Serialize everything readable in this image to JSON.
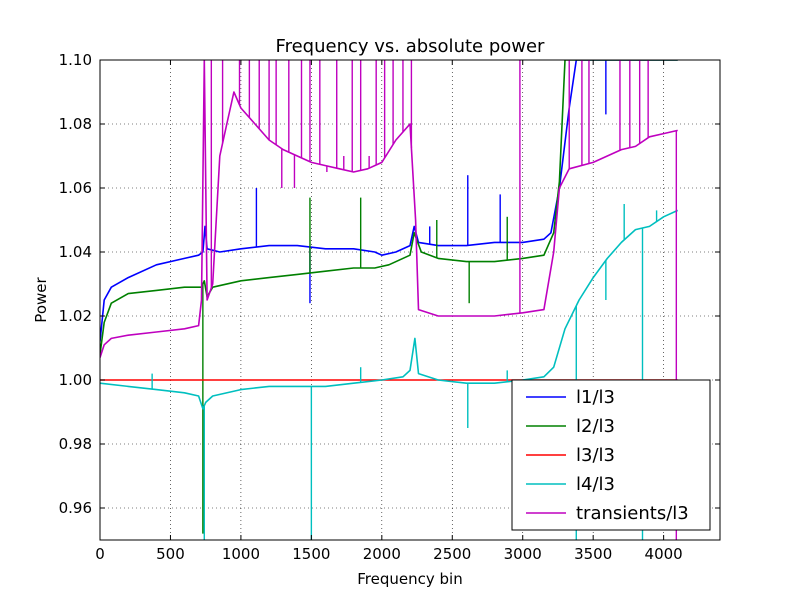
{
  "chart_data": {
    "type": "line",
    "title": "Frequency vs. absolute power",
    "xlabel": "Frequency bin",
    "ylabel": "Power",
    "xlim": [
      0,
      4400
    ],
    "ylim": [
      0.95,
      1.1
    ],
    "xticks": [
      0,
      500,
      1000,
      1500,
      2000,
      2500,
      3000,
      3500,
      4000
    ],
    "yticks": [
      0.96,
      0.98,
      1.0,
      1.02,
      1.04,
      1.06,
      1.08,
      1.1
    ],
    "ytick_labels": [
      "0.96",
      "0.98",
      "1.00",
      "1.02",
      "1.04",
      "1.06",
      "1.08",
      "1.10"
    ],
    "grid": true,
    "legend_position": "lower-right",
    "series": [
      {
        "name": "l1/l3",
        "color": "#0000ff",
        "points": [
          [
            0,
            1.012
          ],
          [
            30,
            1.025
          ],
          [
            80,
            1.029
          ],
          [
            200,
            1.032
          ],
          [
            400,
            1.036
          ],
          [
            600,
            1.038
          ],
          [
            700,
            1.039
          ],
          [
            730,
            1.04
          ],
          [
            745,
            1.048
          ],
          [
            760,
            1.041
          ],
          [
            850,
            1.04
          ],
          [
            1000,
            1.041
          ],
          [
            1200,
            1.042
          ],
          [
            1400,
            1.042
          ],
          [
            1600,
            1.041
          ],
          [
            1800,
            1.041
          ],
          [
            1950,
            1.04
          ],
          [
            2000,
            1.039
          ],
          [
            2100,
            1.04
          ],
          [
            2200,
            1.042
          ],
          [
            2230,
            1.048
          ],
          [
            2260,
            1.043
          ],
          [
            2400,
            1.042
          ],
          [
            2600,
            1.042
          ],
          [
            2800,
            1.043
          ],
          [
            3000,
            1.043
          ],
          [
            3150,
            1.044
          ],
          [
            3200,
            1.046
          ],
          [
            3260,
            1.06
          ],
          [
            3330,
            1.085
          ],
          [
            3380,
            1.1
          ],
          [
            4100,
            1.1
          ]
        ],
        "spikes": [
          [
            1110,
            1.06
          ],
          [
            1490,
            1.024
          ],
          [
            2340,
            1.048
          ],
          [
            2610,
            1.064
          ],
          [
            2840,
            1.058
          ],
          [
            3590,
            1.083
          ]
        ]
      },
      {
        "name": "l2/l3",
        "color": "#008000",
        "points": [
          [
            0,
            1.008
          ],
          [
            30,
            1.018
          ],
          [
            80,
            1.024
          ],
          [
            200,
            1.027
          ],
          [
            400,
            1.028
          ],
          [
            600,
            1.029
          ],
          [
            720,
            1.029
          ],
          [
            740,
            1.031
          ],
          [
            760,
            1.026
          ],
          [
            800,
            1.029
          ],
          [
            1000,
            1.031
          ],
          [
            1200,
            1.032
          ],
          [
            1400,
            1.033
          ],
          [
            1600,
            1.034
          ],
          [
            1800,
            1.035
          ],
          [
            1950,
            1.035
          ],
          [
            2050,
            1.036
          ],
          [
            2200,
            1.039
          ],
          [
            2230,
            1.046
          ],
          [
            2280,
            1.04
          ],
          [
            2400,
            1.038
          ],
          [
            2600,
            1.037
          ],
          [
            2800,
            1.037
          ],
          [
            3000,
            1.038
          ],
          [
            3150,
            1.039
          ],
          [
            3220,
            1.046
          ],
          [
            3260,
            1.062
          ],
          [
            3300,
            1.1
          ],
          [
            4100,
            1.1
          ]
        ],
        "spikes": [
          [
            730,
            0.952
          ],
          [
            1490,
            1.057
          ],
          [
            1850,
            1.057
          ],
          [
            2390,
            1.05
          ],
          [
            2620,
            1.024
          ],
          [
            2890,
            1.051
          ]
        ]
      },
      {
        "name": "l3/l3",
        "color": "#ff0000",
        "points": [
          [
            0,
            1.0
          ],
          [
            4100,
            1.0
          ]
        ],
        "spikes": []
      },
      {
        "name": "l4/l3",
        "color": "#00bfbf",
        "points": [
          [
            0,
            0.999
          ],
          [
            200,
            0.998
          ],
          [
            400,
            0.997
          ],
          [
            600,
            0.996
          ],
          [
            700,
            0.995
          ],
          [
            730,
            0.991
          ],
          [
            750,
            0.993
          ],
          [
            800,
            0.995
          ],
          [
            1000,
            0.997
          ],
          [
            1200,
            0.998
          ],
          [
            1400,
            0.998
          ],
          [
            1600,
            0.998
          ],
          [
            1800,
            0.999
          ],
          [
            2000,
            1.0
          ],
          [
            2150,
            1.001
          ],
          [
            2200,
            1.003
          ],
          [
            2235,
            1.013
          ],
          [
            2260,
            1.002
          ],
          [
            2400,
            1.0
          ],
          [
            2600,
            0.999
          ],
          [
            2800,
            0.999
          ],
          [
            3000,
            1.0
          ],
          [
            3150,
            1.001
          ],
          [
            3220,
            1.004
          ],
          [
            3300,
            1.016
          ],
          [
            3400,
            1.025
          ],
          [
            3500,
            1.032
          ],
          [
            3600,
            1.038
          ],
          [
            3700,
            1.043
          ],
          [
            3800,
            1.047
          ],
          [
            3900,
            1.048
          ],
          [
            4000,
            1.051
          ],
          [
            4100,
            1.053
          ]
        ],
        "spikes": [
          [
            370,
            1.002
          ],
          [
            740,
            0.95
          ],
          [
            1500,
            0.95
          ],
          [
            1850,
            1.004
          ],
          [
            2610,
            0.985
          ],
          [
            2890,
            1.003
          ],
          [
            3380,
            0.95
          ],
          [
            3590,
            1.025
          ],
          [
            3720,
            1.055
          ],
          [
            3850,
            0.95
          ],
          [
            3950,
            1.053
          ]
        ]
      },
      {
        "name": "transients/l3",
        "color": "#bf00bf",
        "points": [
          [
            0,
            1.007
          ],
          [
            30,
            1.011
          ],
          [
            80,
            1.013
          ],
          [
            200,
            1.014
          ],
          [
            400,
            1.015
          ],
          [
            600,
            1.016
          ],
          [
            700,
            1.017
          ],
          [
            720,
            1.025
          ],
          [
            740,
            1.1
          ],
          [
            760,
            1.025
          ],
          [
            800,
            1.03
          ],
          [
            850,
            1.07
          ],
          [
            900,
            1.08
          ],
          [
            950,
            1.09
          ],
          [
            1000,
            1.085
          ],
          [
            1100,
            1.08
          ],
          [
            1200,
            1.075
          ],
          [
            1300,
            1.072
          ],
          [
            1400,
            1.07
          ],
          [
            1500,
            1.068
          ],
          [
            1600,
            1.067
          ],
          [
            1700,
            1.066
          ],
          [
            1800,
            1.065
          ],
          [
            1900,
            1.066
          ],
          [
            2000,
            1.068
          ],
          [
            2100,
            1.075
          ],
          [
            2200,
            1.08
          ],
          [
            2240,
            1.05
          ],
          [
            2260,
            1.022
          ],
          [
            2400,
            1.02
          ],
          [
            2600,
            1.02
          ],
          [
            2800,
            1.02
          ],
          [
            3000,
            1.021
          ],
          [
            3150,
            1.022
          ],
          [
            3220,
            1.04
          ],
          [
            3260,
            1.06
          ],
          [
            3330,
            1.066
          ],
          [
            3500,
            1.068
          ],
          [
            3600,
            1.07
          ],
          [
            3700,
            1.072
          ],
          [
            3800,
            1.073
          ],
          [
            3900,
            1.076
          ],
          [
            4000,
            1.077
          ],
          [
            4100,
            1.078
          ]
        ],
        "spikes": [
          [
            740,
            1.1
          ],
          [
            790,
            1.1
          ],
          [
            870,
            1.1
          ],
          [
            990,
            1.1
          ],
          [
            1060,
            1.1
          ],
          [
            1130,
            1.1
          ],
          [
            1200,
            1.1
          ],
          [
            1250,
            1.1
          ],
          [
            1290,
            1.06
          ],
          [
            1340,
            1.1
          ],
          [
            1380,
            1.06
          ],
          [
            1430,
            1.1
          ],
          [
            1490,
            1.1
          ],
          [
            1560,
            1.1
          ],
          [
            1610,
            1.065
          ],
          [
            1680,
            1.1
          ],
          [
            1730,
            1.07
          ],
          [
            1790,
            1.1
          ],
          [
            1850,
            1.1
          ],
          [
            1910,
            1.07
          ],
          [
            1960,
            1.1
          ],
          [
            2020,
            1.1
          ],
          [
            2080,
            1.1
          ],
          [
            2150,
            1.1
          ],
          [
            2210,
            1.1
          ],
          [
            2980,
            1.1
          ],
          [
            3330,
            1.1
          ],
          [
            3420,
            1.1
          ],
          [
            3470,
            1.1
          ],
          [
            3690,
            1.1
          ],
          [
            3760,
            1.1
          ],
          [
            3830,
            1.1
          ],
          [
            3890,
            1.1
          ],
          [
            4090,
            0.95
          ]
        ]
      }
    ]
  }
}
